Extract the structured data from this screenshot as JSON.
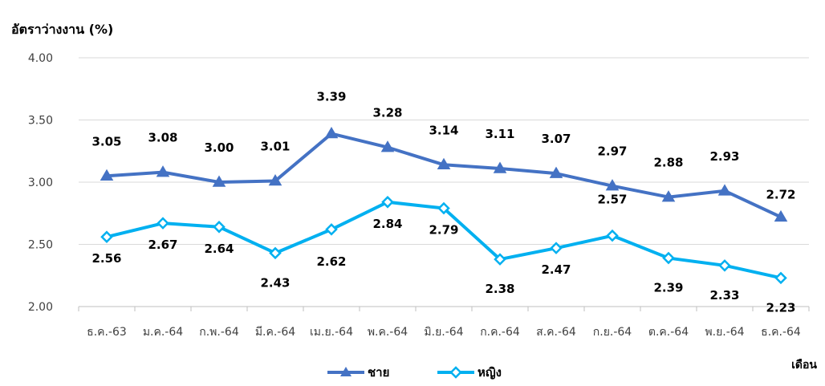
{
  "chart_data": {
    "type": "line",
    "ylabel": "อัตราว่างงาน (%)",
    "xlabel": "เดือน",
    "ylim": [
      2.0,
      4.0
    ],
    "yticks": [
      "2.00",
      "2.50",
      "3.00",
      "3.50",
      "4.00"
    ],
    "grid": true,
    "legend_position": "bottom",
    "categories": [
      "ธ.ค.-63",
      "ม.ค.-64",
      "ก.พ.-64",
      "มี.ค.-64",
      "เม.ย.-64",
      "พ.ค.-64",
      "มิ.ย.-64",
      "ก.ค.-64",
      "ส.ค.-64",
      "ก.ย.-64",
      "ต.ค.-64",
      "พ.ย.-64",
      "ธ.ค.-64"
    ],
    "series": [
      {
        "name": "ชาย",
        "color": "#4472C4",
        "marker": "triangle",
        "values": [
          3.05,
          3.08,
          3.0,
          3.01,
          3.39,
          3.28,
          3.14,
          3.11,
          3.07,
          2.97,
          2.88,
          2.93,
          2.72
        ],
        "labels": [
          "3.05",
          "3.08",
          "3.00",
          "3.01",
          "3.39",
          "3.28",
          "3.14",
          "3.11",
          "3.07",
          "2.97",
          "2.88",
          "2.93",
          "2.72"
        ]
      },
      {
        "name": "หญิง",
        "color": "#00B0F0",
        "marker": "diamond",
        "values": [
          2.56,
          2.67,
          2.64,
          2.43,
          2.62,
          2.84,
          2.79,
          2.38,
          2.47,
          2.57,
          2.39,
          2.33,
          2.23
        ],
        "labels": [
          "2.56",
          "2.67",
          "2.64",
          "2.43",
          "2.62",
          "2.84",
          "2.79",
          "2.38",
          "2.47",
          "2.57",
          "2.39",
          "2.33",
          "2.23"
        ]
      }
    ]
  }
}
